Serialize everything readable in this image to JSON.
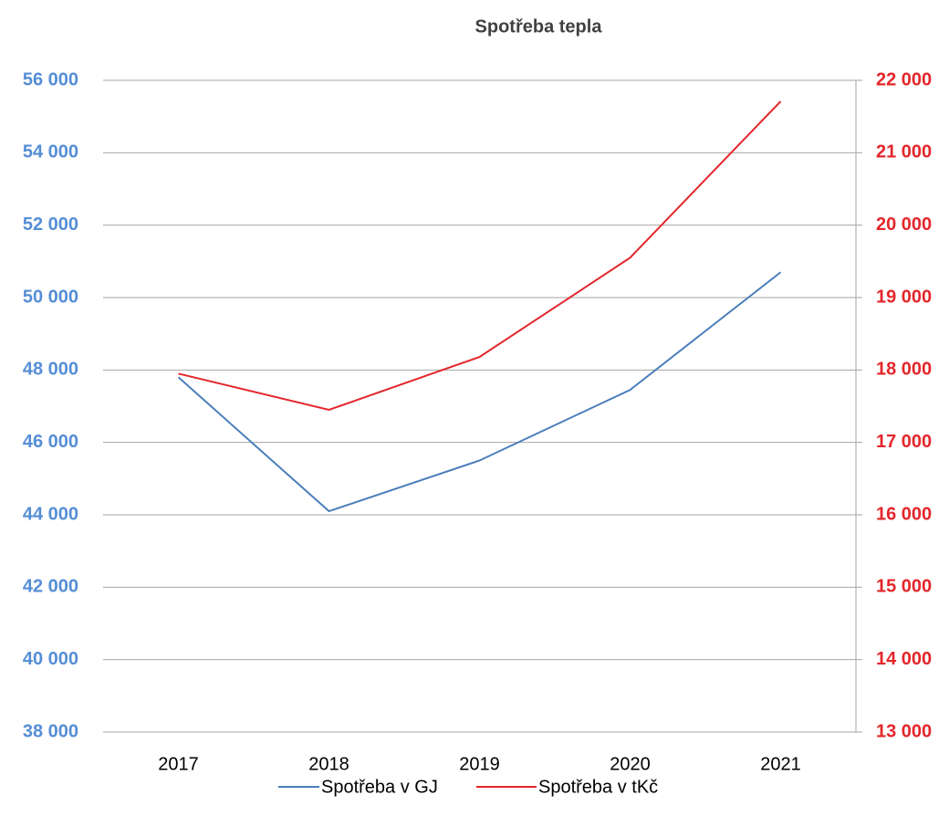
{
  "chart_data": {
    "type": "line",
    "title": "Spotřeba tepla",
    "categories": [
      "2017",
      "2018",
      "2019",
      "2020",
      "2021"
    ],
    "series": [
      {
        "name": "Spotřeba v GJ",
        "color": "#4a7ebb",
        "values": [
          47800,
          44100,
          45500,
          47450,
          50700
        ]
      },
      {
        "name": "Spotřeba v tKč",
        "color": "#e3262b",
        "axis": "y2",
        "values": [
          17950,
          17450,
          18180,
          19550,
          21710
        ]
      }
    ],
    "ylim": [
      38000,
      56000
    ],
    "yticks": [
      {
        "value": 38000,
        "label": "38 000"
      },
      {
        "value": 40000,
        "label": "40 000"
      },
      {
        "value": 42000,
        "label": "42 000"
      },
      {
        "value": 44000,
        "label": "44 000"
      },
      {
        "value": 46000,
        "label": "46 000"
      },
      {
        "value": 48000,
        "label": "48 000"
      },
      {
        "value": 50000,
        "label": "50 000"
      },
      {
        "value": 52000,
        "label": "52 000"
      },
      {
        "value": 54000,
        "label": "54 000"
      },
      {
        "value": 56000,
        "label": "56 000"
      }
    ],
    "y2lim": [
      13000,
      22000
    ],
    "y2ticks": [
      {
        "value": 13000,
        "label": "13 000"
      },
      {
        "value": 14000,
        "label": "14 000"
      },
      {
        "value": 15000,
        "label": "15 000"
      },
      {
        "value": 16000,
        "label": "16 000"
      },
      {
        "value": 17000,
        "label": "17 000"
      },
      {
        "value": 18000,
        "label": "18 000"
      },
      {
        "value": 19000,
        "label": "19 000"
      },
      {
        "value": 20000,
        "label": "20 000"
      },
      {
        "value": 21000,
        "label": "21 000"
      },
      {
        "value": 22000,
        "label": "22 000"
      }
    ],
    "ycolor": "#558ed5",
    "y2color": "#e3262b",
    "grid": true,
    "legend": "bottom"
  }
}
